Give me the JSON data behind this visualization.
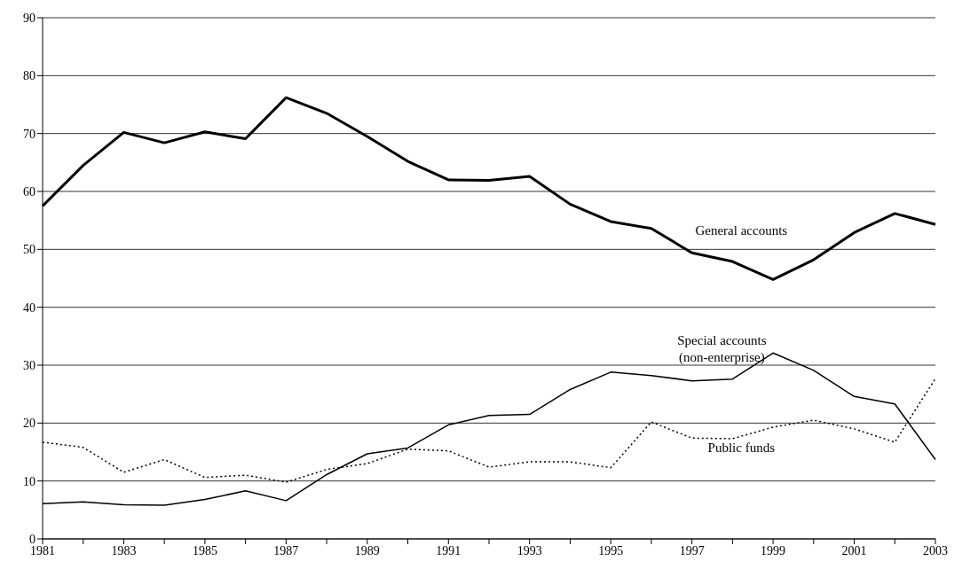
{
  "chart_data": {
    "type": "line",
    "categories": [
      "1981",
      null,
      "1983",
      null,
      "1985",
      null,
      "1987",
      null,
      "1989",
      null,
      "1991",
      null,
      "1993",
      null,
      "1995",
      null,
      "1997",
      null,
      "1999",
      null,
      "2001",
      null,
      "2003"
    ],
    "series": [
      {
        "name": "General accounts",
        "color": "#000000",
        "line_style": "solid",
        "values": [
          57.5,
          64.5,
          70.2,
          68.4,
          70.3,
          69.1,
          76.2,
          73.5,
          69.5,
          65.2,
          62.0,
          61.9,
          62.6,
          57.8,
          54.8,
          53.6,
          49.4,
          47.9,
          44.8,
          48.2,
          52.9,
          56.2,
          54.3
        ]
      },
      {
        "name": "Special accounts (non-enterprise)",
        "color": "#000000",
        "line_style": "solid",
        "values": [
          6.1,
          6.4,
          5.9,
          5.8,
          6.8,
          8.3,
          6.6,
          11.1,
          14.7,
          15.7,
          19.7,
          21.3,
          21.5,
          25.8,
          28.8,
          28.2,
          27.3,
          27.6,
          32.1,
          29.1,
          24.6,
          23.3,
          13.7
        ]
      },
      {
        "name": "Public funds",
        "color": "#000000",
        "line_style": "dotted",
        "values": [
          16.7,
          15.8,
          11.5,
          13.7,
          10.6,
          11.0,
          9.8,
          12.0,
          13.0,
          15.5,
          15.2,
          12.4,
          13.3,
          13.3,
          12.3,
          20.2,
          17.4,
          17.3,
          19.3,
          20.5,
          19.0,
          16.7,
          27.7
        ]
      }
    ],
    "ylim": [
      0,
      90
    ],
    "yticks": [
      0,
      10,
      20,
      30,
      40,
      50,
      60,
      70,
      80,
      90
    ],
    "grid": "y",
    "legend": false,
    "marker": "none"
  }
}
